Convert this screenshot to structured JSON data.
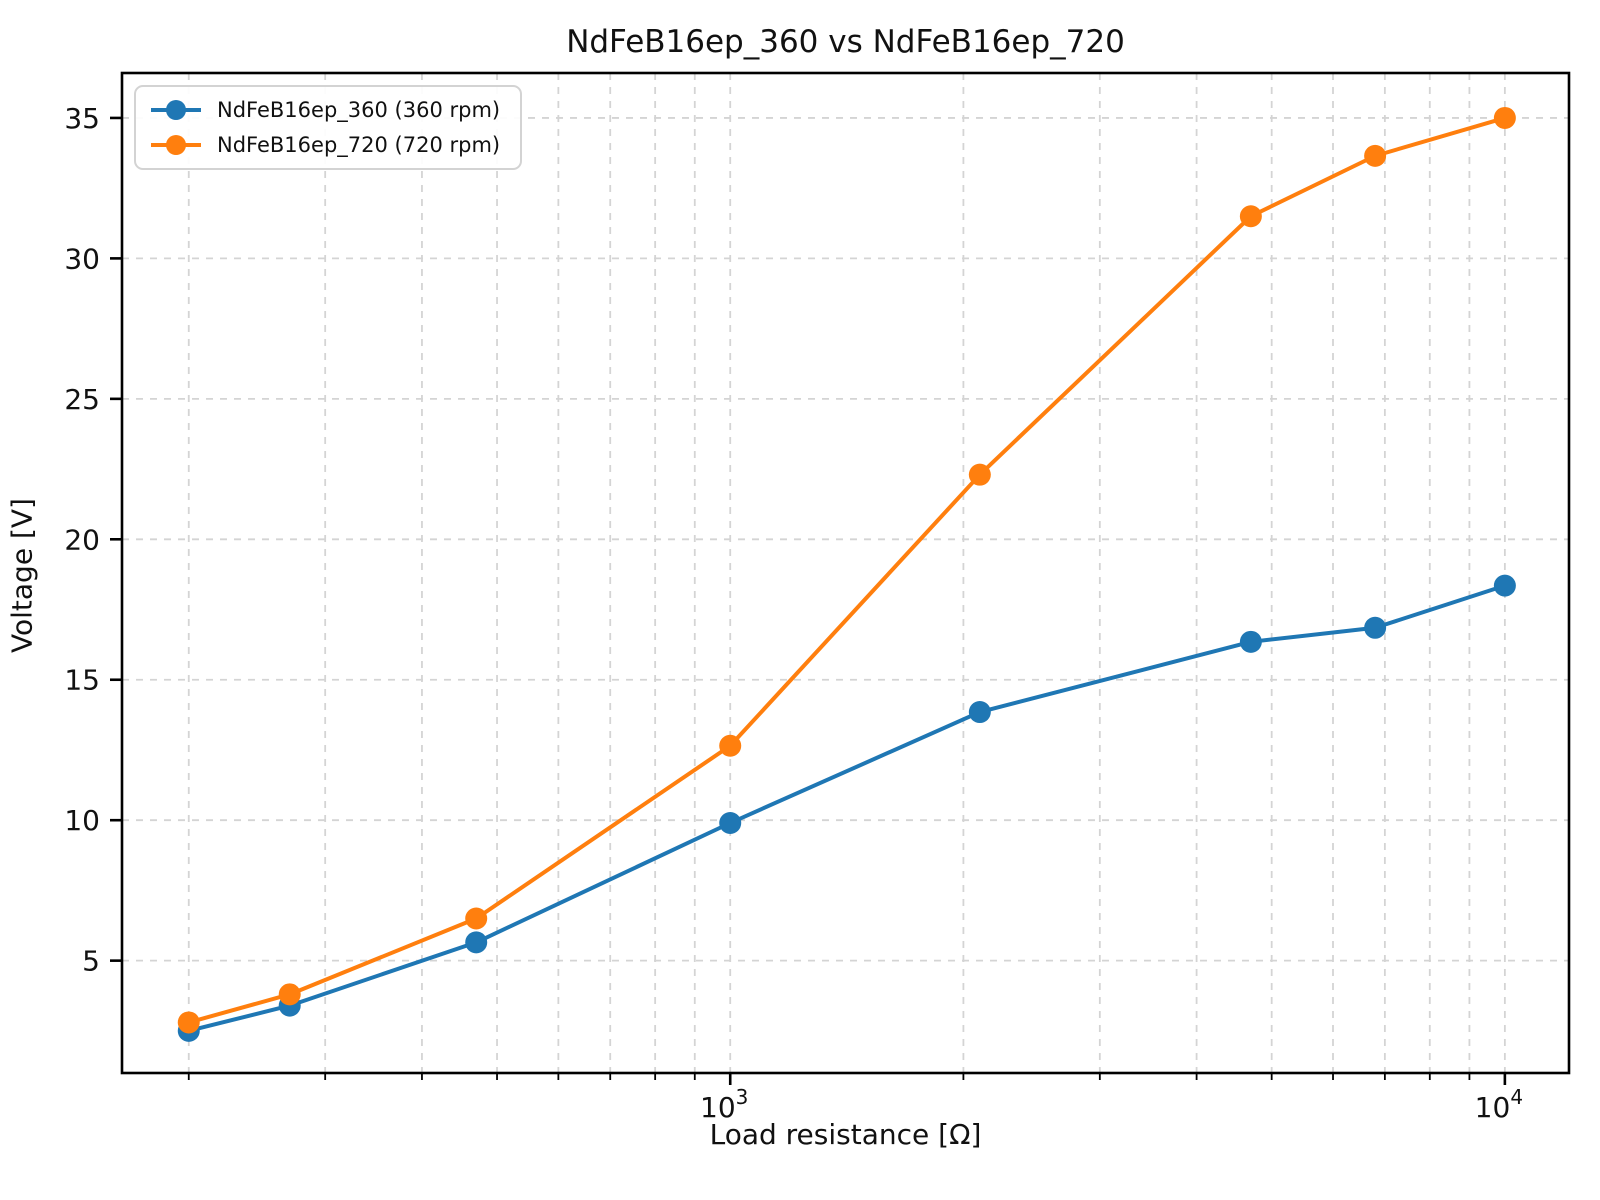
{
  "title": "NdFeB16ep_360 vs NdFeB16ep_720",
  "chart_data": {
    "type": "line",
    "title": "NdFeB16ep_360 vs NdFeB16ep_720",
    "xlabel": "Load resistance [Ω]",
    "ylabel": "Voltage [V]",
    "x_scale": "log",
    "grid": true,
    "grid_style": "dashed",
    "legend_position": "upper left",
    "x": [
      200,
      270,
      470,
      1000,
      2100,
      4700,
      6800,
      10000
    ],
    "series": [
      {
        "name": "NdFeB16ep_360 (360 rpm)",
        "color": "#1f77b4",
        "values": [
          2.5,
          3.4,
          5.65,
          9.9,
          13.85,
          16.35,
          16.85,
          18.35
        ]
      },
      {
        "name": "NdFeB16ep_720 (720 rpm)",
        "color": "#ff7f0e",
        "values": [
          2.8,
          3.8,
          6.5,
          12.65,
          22.3,
          31.5,
          33.65,
          35.0
        ]
      }
    ],
    "xlim": [
      164,
      12100
    ],
    "ylim": [
      1.0,
      36.6
    ],
    "x_major_ticks": [
      1000,
      10000
    ],
    "x_major_tick_labels": [
      {
        "base": "10",
        "exp": "3"
      },
      {
        "base": "10",
        "exp": "4"
      }
    ],
    "y_ticks": [
      5,
      10,
      15,
      20,
      25,
      30,
      35
    ]
  },
  "style_colors": {
    "grid": "#d4d4d4",
    "axis": "#000000",
    "text": "#111111"
  }
}
